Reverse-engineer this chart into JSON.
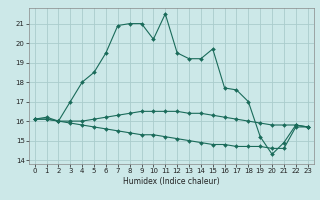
{
  "title": "",
  "xlabel": "Humidex (Indice chaleur)",
  "background_color": "#cce8e8",
  "grid_color": "#aacccc",
  "line_color": "#1a6b5a",
  "xlim": [
    -0.5,
    23.5
  ],
  "ylim": [
    13.8,
    21.8
  ],
  "yticks": [
    14,
    15,
    16,
    17,
    18,
    19,
    20,
    21
  ],
  "xticks": [
    0,
    1,
    2,
    3,
    4,
    5,
    6,
    7,
    8,
    9,
    10,
    11,
    12,
    13,
    14,
    15,
    16,
    17,
    18,
    19,
    20,
    21,
    22,
    23
  ],
  "line1_x": [
    0,
    1,
    2,
    3,
    4,
    5,
    6,
    7,
    8,
    9,
    10,
    11,
    12,
    13,
    14,
    15,
    16,
    17,
    18,
    19,
    20,
    21,
    22,
    23
  ],
  "line1_y": [
    16.1,
    16.2,
    16.0,
    17.0,
    18.0,
    18.5,
    19.5,
    20.9,
    21.0,
    21.0,
    20.2,
    21.5,
    19.5,
    19.2,
    19.2,
    19.7,
    17.7,
    17.6,
    17.0,
    15.2,
    14.3,
    14.9,
    15.8,
    15.7
  ],
  "line2_x": [
    0,
    1,
    2,
    3,
    4,
    5,
    6,
    7,
    8,
    9,
    10,
    11,
    12,
    13,
    14,
    15,
    16,
    17,
    18,
    19,
    20,
    21,
    22,
    23
  ],
  "line2_y": [
    16.1,
    16.1,
    16.0,
    16.0,
    16.0,
    16.1,
    16.2,
    16.3,
    16.4,
    16.5,
    16.5,
    16.5,
    16.5,
    16.4,
    16.4,
    16.3,
    16.2,
    16.1,
    16.0,
    15.9,
    15.8,
    15.8,
    15.8,
    15.7
  ],
  "line3_x": [
    0,
    1,
    2,
    3,
    4,
    5,
    6,
    7,
    8,
    9,
    10,
    11,
    12,
    13,
    14,
    15,
    16,
    17,
    18,
    19,
    20,
    21,
    22,
    23
  ],
  "line3_y": [
    16.1,
    16.1,
    16.0,
    15.9,
    15.8,
    15.7,
    15.6,
    15.5,
    15.4,
    15.3,
    15.3,
    15.2,
    15.1,
    15.0,
    14.9,
    14.8,
    14.8,
    14.7,
    14.7,
    14.7,
    14.6,
    14.6,
    15.7,
    15.7
  ],
  "marker": "D",
  "markersize": 2.0,
  "linewidth": 0.8,
  "tick_fontsize": 5.0,
  "xlabel_fontsize": 5.5
}
